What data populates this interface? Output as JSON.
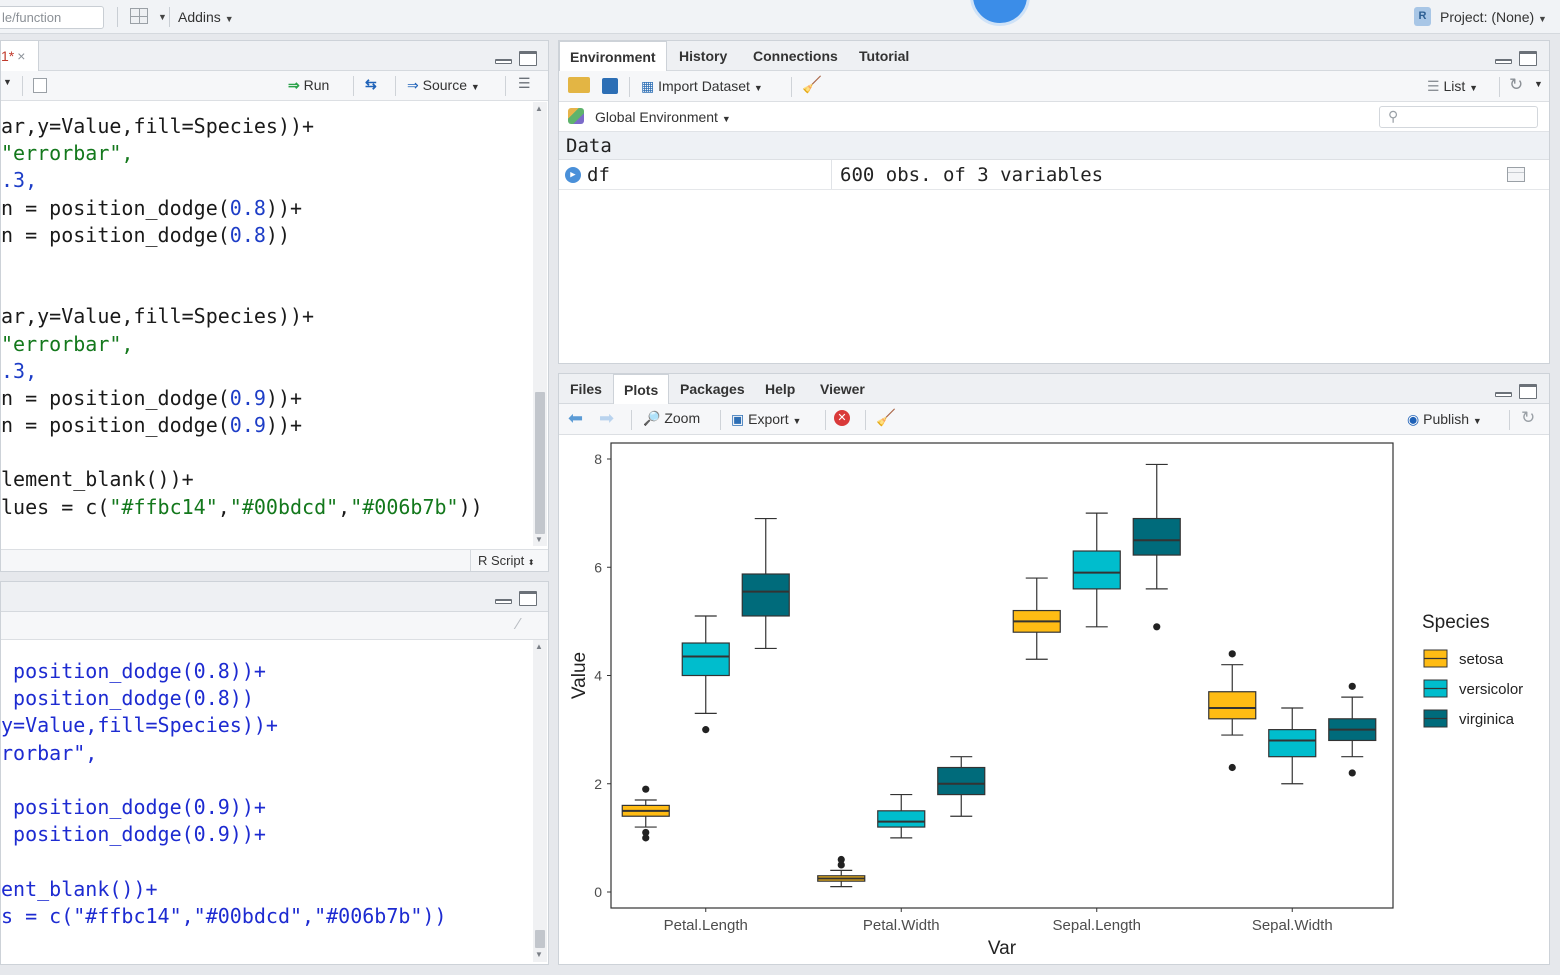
{
  "topbar": {
    "search_placeholder": "le/function",
    "addins_label": "Addins",
    "project_label": "Project: (None)",
    "project_icon_letter": "R"
  },
  "source": {
    "file_tab_label": "1*",
    "file_tab_close": "×",
    "run_label": "Run",
    "source_label": "Source",
    "script_type": "R Script",
    "lines": [
      [
        {
          "t": "ar,y=Value,fill=Species))+",
          "c": ""
        }
      ],
      [
        {
          "t": "\"errorbar\",",
          "c": "green"
        }
      ],
      [
        {
          "t": ".3,",
          "c": "blue"
        }
      ],
      [
        {
          "t": "n = position_dodge(",
          "c": ""
        },
        {
          "t": "0.8",
          "c": "blue"
        },
        {
          "t": "))+",
          "c": ""
        }
      ],
      [
        {
          "t": "n = position_dodge(",
          "c": ""
        },
        {
          "t": "0.8",
          "c": "blue"
        },
        {
          "t": "))",
          "c": ""
        }
      ],
      [],
      [],
      [
        {
          "t": "ar,y=Value,fill=Species))+",
          "c": ""
        }
      ],
      [
        {
          "t": "\"errorbar\",",
          "c": "green"
        }
      ],
      [
        {
          "t": ".3,",
          "c": "blue"
        }
      ],
      [
        {
          "t": "n = position_dodge(",
          "c": ""
        },
        {
          "t": "0.9",
          "c": "blue"
        },
        {
          "t": "))+",
          "c": ""
        }
      ],
      [
        {
          "t": "n = position_dodge(",
          "c": ""
        },
        {
          "t": "0.9",
          "c": "blue"
        },
        {
          "t": "))+",
          "c": ""
        }
      ],
      [],
      [
        {
          "t": "lement_blank())+",
          "c": ""
        }
      ],
      [
        {
          "t": "lues = c(",
          "c": ""
        },
        {
          "t": "\"#ffbc14\"",
          "c": "green"
        },
        {
          "t": ",",
          "c": ""
        },
        {
          "t": "\"#00bdcd\"",
          "c": "green"
        },
        {
          "t": ",",
          "c": ""
        },
        {
          "t": "\"#006b7b\"",
          "c": "green"
        },
        {
          "t": "))",
          "c": ""
        }
      ]
    ]
  },
  "console": {
    "lines": [
      " position_dodge(0.8))+",
      " position_dodge(0.8))",
      "y=Value,fill=Species))+",
      "rorbar\",",
      "",
      " position_dodge(0.9))+",
      " position_dodge(0.9))+",
      "",
      "ent_blank())+",
      "s = c(\"#ffbc14\",\"#00bdcd\",\"#006b7b\"))"
    ]
  },
  "environment": {
    "tabs": [
      "Environment",
      "History",
      "Connections",
      "Tutorial"
    ],
    "import_label": "Import Dataset",
    "list_label": "List",
    "scope_label": "Global Environment",
    "section_label": "Data",
    "rows": [
      {
        "name": "df",
        "value": "600 obs. of 3 variables"
      }
    ]
  },
  "plots_pane": {
    "tabs": [
      "Files",
      "Plots",
      "Packages",
      "Help",
      "Viewer"
    ],
    "zoom_label": "Zoom",
    "export_label": "Export",
    "publish_label": "Publish"
  },
  "colors": {
    "setosa": "#ffbc14",
    "versicolor": "#00bdcd",
    "virginica": "#006b7b"
  },
  "chart_data": {
    "type": "boxplot",
    "xlabel": "Var",
    "ylabel": "Value",
    "ylim": [
      0,
      8
    ],
    "yticks": [
      0,
      2,
      4,
      6,
      8
    ],
    "categories": [
      "Petal.Length",
      "Petal.Width",
      "Sepal.Length",
      "Sepal.Width"
    ],
    "legend_title": "Species",
    "legend_position": "right",
    "grid": false,
    "series": [
      {
        "name": "setosa",
        "color": "#ffbc14",
        "boxes": [
          {
            "min": 1.2,
            "q1": 1.4,
            "median": 1.5,
            "q3": 1.6,
            "max": 1.7,
            "outliers": [
              1.9,
              1.0,
              1.1
            ]
          },
          {
            "min": 0.1,
            "q1": 0.2,
            "median": 0.25,
            "q3": 0.3,
            "max": 0.4,
            "outliers": [
              0.5,
              0.6
            ]
          },
          {
            "min": 4.3,
            "q1": 4.8,
            "median": 5.0,
            "q3": 5.2,
            "max": 5.8,
            "outliers": []
          },
          {
            "min": 2.9,
            "q1": 3.2,
            "median": 3.4,
            "q3": 3.7,
            "max": 4.2,
            "outliers": [
              4.4,
              2.3
            ]
          }
        ]
      },
      {
        "name": "versicolor",
        "color": "#00bdcd",
        "boxes": [
          {
            "min": 3.3,
            "q1": 4.0,
            "median": 4.35,
            "q3": 4.6,
            "max": 5.1,
            "outliers": [
              3.0
            ]
          },
          {
            "min": 1.0,
            "q1": 1.2,
            "median": 1.3,
            "q3": 1.5,
            "max": 1.8,
            "outliers": []
          },
          {
            "min": 4.9,
            "q1": 5.6,
            "median": 5.9,
            "q3": 6.3,
            "max": 7.0,
            "outliers": []
          },
          {
            "min": 2.0,
            "q1": 2.5,
            "median": 2.8,
            "q3": 3.0,
            "max": 3.4,
            "outliers": []
          }
        ]
      },
      {
        "name": "virginica",
        "color": "#006b7b",
        "boxes": [
          {
            "min": 4.5,
            "q1": 5.1,
            "median": 5.55,
            "q3": 5.875,
            "max": 6.9,
            "outliers": []
          },
          {
            "min": 1.4,
            "q1": 1.8,
            "median": 2.0,
            "q3": 2.3,
            "max": 2.5,
            "outliers": []
          },
          {
            "min": 5.6,
            "q1": 6.225,
            "median": 6.5,
            "q3": 6.9,
            "max": 7.9,
            "outliers": [
              4.9
            ]
          },
          {
            "min": 2.5,
            "q1": 2.8,
            "median": 3.0,
            "q3": 3.2,
            "max": 3.6,
            "outliers": [
              3.8,
              2.2
            ]
          }
        ]
      }
    ]
  }
}
